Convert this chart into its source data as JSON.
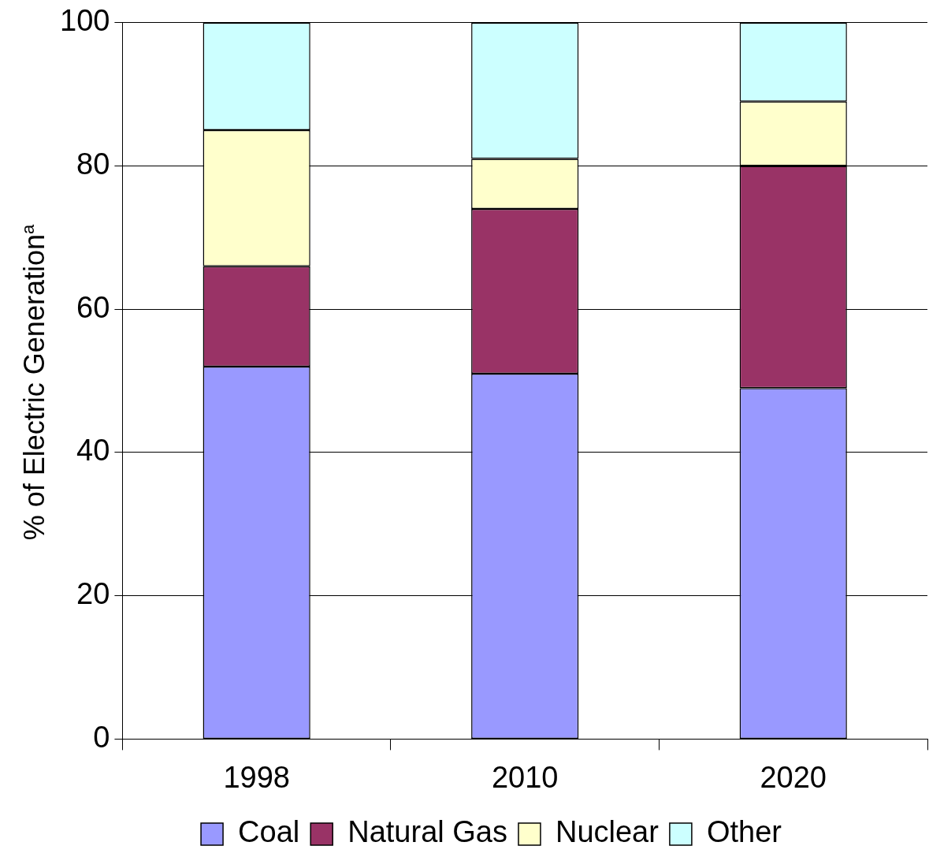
{
  "chart_data": {
    "type": "bar",
    "stacked": true,
    "ylabel": "% of Electric Generation$^{a}$",
    "categories": [
      "1998",
      "2010",
      "2020"
    ],
    "series": [
      {
        "name": "Coal",
        "color": "#9999ff",
        "values": [
          52,
          51,
          49
        ]
      },
      {
        "name": "Natural Gas",
        "color": "#993366",
        "values": [
          14,
          23,
          31
        ]
      },
      {
        "name": "Nuclear",
        "color": "#ffffcc",
        "values": [
          19,
          7,
          9
        ]
      },
      {
        "name": "Other",
        "color": "#ccffff",
        "values": [
          15,
          19,
          11
        ]
      }
    ],
    "ylim": [
      0,
      100
    ],
    "yticks": [
      0,
      20,
      40,
      60,
      80,
      100
    ],
    "grid": "y",
    "legend": "bottom"
  }
}
